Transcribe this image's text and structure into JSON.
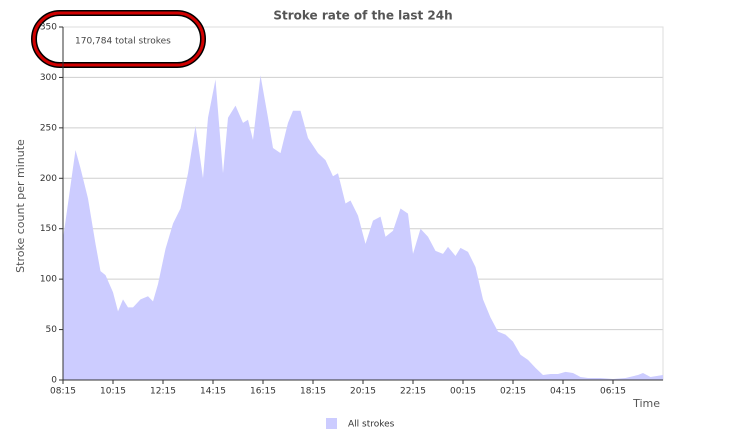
{
  "chart_data": {
    "type": "area",
    "title": "Stroke rate of the last 24h",
    "y_label": "Stroke count per minute",
    "x_label": "Time",
    "annotation": "170,784 total strokes",
    "x": [
      0,
      0.2,
      0.5,
      0.7,
      1.0,
      1.3,
      1.5,
      1.7,
      2.0,
      2.2,
      2.4,
      2.6,
      2.8,
      3.1,
      3.4,
      3.6,
      3.8,
      4.1,
      4.4,
      4.7,
      5.0,
      5.3,
      5.6,
      5.8,
      6.1,
      6.4,
      6.6,
      6.9,
      7.2,
      7.4,
      7.6,
      7.9,
      8.2,
      8.4,
      8.7,
      9.0,
      9.2,
      9.5,
      9.8,
      10.2,
      10.5,
      10.8,
      11.0,
      11.3,
      11.5,
      11.8,
      12.1,
      12.4,
      12.7,
      12.9,
      13.2,
      13.5,
      13.8,
      14.0,
      14.3,
      14.6,
      14.9,
      15.2,
      15.4,
      15.7,
      15.9,
      16.2,
      16.5,
      16.8,
      17.1,
      17.4,
      17.7,
      18.0,
      18.3,
      18.6,
      18.9,
      19.2,
      19.5,
      19.8,
      20.1,
      20.4,
      20.7,
      21.0,
      21.5,
      22.0,
      22.5,
      23.0,
      23.2,
      23.5,
      24.0
    ],
    "series": [
      {
        "name": "All strokes",
        "color": "#ccccff",
        "values": [
          140,
          175,
          228,
          210,
          180,
          135,
          108,
          104,
          87,
          68,
          80,
          72,
          72,
          80,
          83,
          78,
          95,
          130,
          155,
          170,
          205,
          252,
          200,
          260,
          298,
          205,
          260,
          272,
          255,
          258,
          238,
          302,
          260,
          230,
          225,
          255,
          267,
          267,
          240,
          225,
          218,
          202,
          205,
          175,
          178,
          163,
          135,
          158,
          162,
          142,
          148,
          170,
          165,
          125,
          150,
          142,
          128,
          125,
          132,
          123,
          131,
          127,
          112,
          80,
          62,
          48,
          45,
          38,
          25,
          20,
          12,
          5,
          6,
          6,
          8,
          7,
          3,
          2,
          2,
          1,
          2,
          5,
          7,
          3,
          5
        ]
      }
    ],
    "xlim": [
      0,
      24
    ],
    "xticks": [
      {
        "value": 0,
        "label": "08:15"
      },
      {
        "value": 2,
        "label": "10:15"
      },
      {
        "value": 4,
        "label": "12:15"
      },
      {
        "value": 6,
        "label": "14:15"
      },
      {
        "value": 8,
        "label": "16:15"
      },
      {
        "value": 10,
        "label": "18:15"
      },
      {
        "value": 12,
        "label": "20:15"
      },
      {
        "value": 14,
        "label": "22:15"
      },
      {
        "value": 16,
        "label": "00:15"
      },
      {
        "value": 18,
        "label": "02:15"
      },
      {
        "value": 20,
        "label": "04:15"
      },
      {
        "value": 22,
        "label": "06:15"
      }
    ],
    "ylim": [
      0,
      350
    ],
    "yticks": [
      0,
      50,
      100,
      150,
      200,
      250,
      300,
      350
    ],
    "grid": true
  }
}
